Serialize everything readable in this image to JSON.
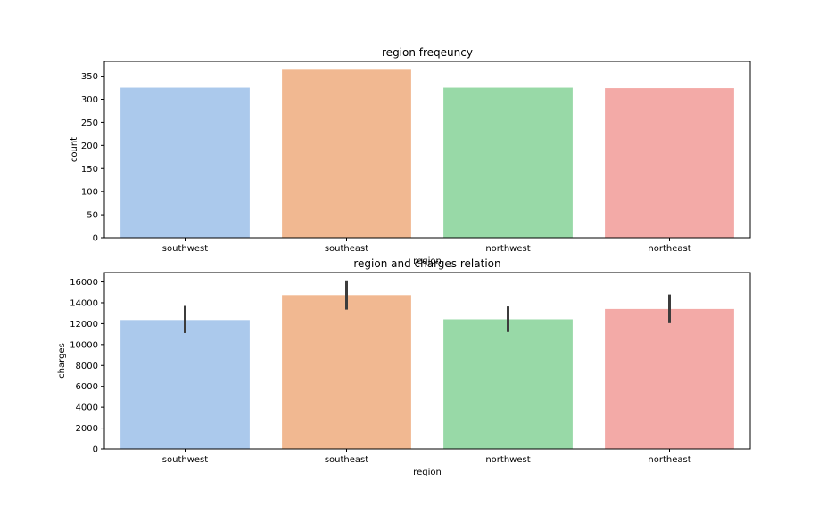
{
  "chart_data": [
    {
      "type": "bar",
      "title": "region freqeuncy",
      "xlabel": "region",
      "ylabel": "count",
      "categories": [
        "southwest",
        "southeast",
        "northwest",
        "northeast"
      ],
      "values": [
        325,
        364,
        325,
        324
      ],
      "colors": [
        "#abc9ec",
        "#f1b891",
        "#98d9a7",
        "#f3aaa7"
      ],
      "ylim": [
        0,
        382
      ],
      "yticks": [
        0,
        50,
        100,
        150,
        200,
        250,
        300,
        350
      ],
      "grid": false,
      "legend": "none"
    },
    {
      "type": "bar",
      "title": "region and charges relation",
      "xlabel": "region",
      "ylabel": "charges",
      "categories": [
        "southwest",
        "southeast",
        "northwest",
        "northeast"
      ],
      "values": [
        12350,
        14740,
        12420,
        13410
      ],
      "error_low": [
        11100,
        13350,
        11200,
        12050
      ],
      "error_high": [
        13700,
        16150,
        13650,
        14800
      ],
      "colors": [
        "#abc9ec",
        "#f1b891",
        "#98d9a7",
        "#f3aaa7"
      ],
      "ylim": [
        0,
        16900
      ],
      "yticks": [
        0,
        2000,
        4000,
        6000,
        8000,
        10000,
        12000,
        14000,
        16000
      ],
      "grid": false,
      "legend": "none"
    }
  ]
}
